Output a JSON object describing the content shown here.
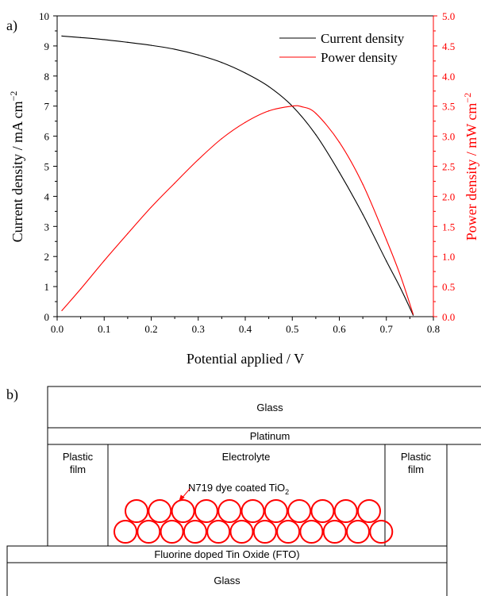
{
  "panel_a": {
    "label": "a)"
  },
  "panel_b": {
    "label": "b)",
    "layers": {
      "top_glass": "Glass",
      "platinum": "Platinum",
      "plastic_film_left": [
        "Plastic",
        "film"
      ],
      "electrolyte": "Electrolyte",
      "plastic_film_right": [
        "Plastic",
        "film"
      ],
      "dye_label": {
        "text": "N719 dye coated TiO",
        "sub": "2"
      },
      "fto": "Fluorine doped Tin Oxide (FTO)",
      "bottom_glass": "Glass"
    },
    "particle_color": "#ff0000"
  },
  "chart_data": {
    "type": "line",
    "xlabel": "Potential applied / V",
    "ylabel_left": {
      "text": "Current density / mA cm",
      "sup": "−2"
    },
    "ylabel_right": {
      "text": "Power density / mW cm",
      "sup": "−2"
    },
    "xlim": [
      0.0,
      0.8
    ],
    "ylim_left": [
      0,
      10
    ],
    "ylim_right": [
      0.0,
      5.0
    ],
    "x_ticks": [
      "0.0",
      "0.1",
      "0.2",
      "0.3",
      "0.4",
      "0.5",
      "0.6",
      "0.7",
      "0.8"
    ],
    "y_ticks_left": [
      "0",
      "1",
      "2",
      "3",
      "4",
      "5",
      "6",
      "7",
      "8",
      "9",
      "10"
    ],
    "y_ticks_right": [
      "0.0",
      "0.5",
      "1.0",
      "1.5",
      "2.0",
      "2.5",
      "3.0",
      "3.5",
      "4.0",
      "4.5",
      "5.0"
    ],
    "grid": false,
    "legend_position": "top-right",
    "series": [
      {
        "name": "Current density",
        "axis": "left",
        "color": "#000000",
        "x": [
          0.01,
          0.05,
          0.1,
          0.15,
          0.2,
          0.25,
          0.3,
          0.35,
          0.4,
          0.45,
          0.5,
          0.55,
          0.6,
          0.65,
          0.7,
          0.73,
          0.757
        ],
        "y": [
          9.33,
          9.28,
          9.21,
          9.12,
          9.02,
          8.89,
          8.7,
          8.45,
          8.1,
          7.65,
          7.0,
          6.05,
          4.8,
          3.4,
          1.85,
          0.95,
          0.05
        ]
      },
      {
        "name": "Power density",
        "axis": "right",
        "color": "#ff0000",
        "x": [
          0.01,
          0.05,
          0.1,
          0.15,
          0.2,
          0.25,
          0.3,
          0.35,
          0.4,
          0.45,
          0.5,
          0.52,
          0.55,
          0.6,
          0.65,
          0.7,
          0.73,
          0.757
        ],
        "y": [
          0.1,
          0.46,
          0.93,
          1.38,
          1.82,
          2.22,
          2.61,
          2.96,
          3.23,
          3.42,
          3.5,
          3.49,
          3.38,
          2.9,
          2.2,
          1.28,
          0.68,
          0.04
        ]
      }
    ]
  }
}
